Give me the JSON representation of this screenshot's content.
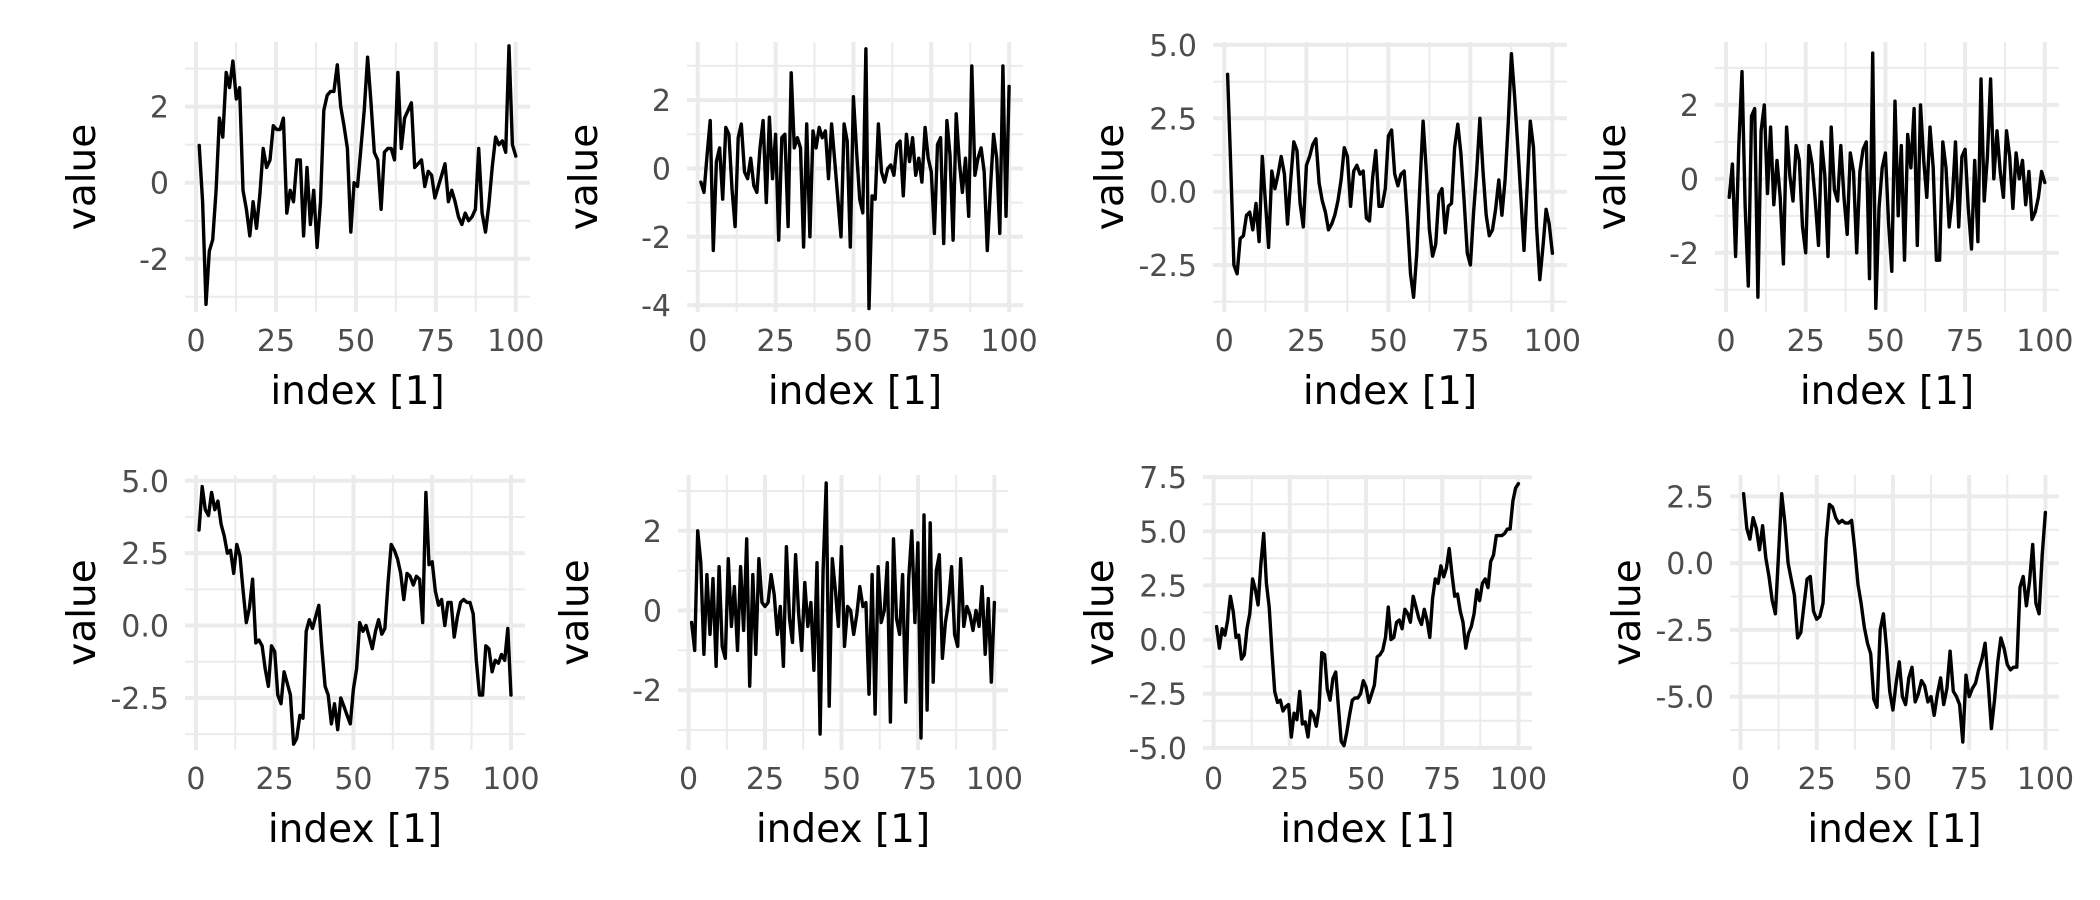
{
  "chart_data": [
    {
      "type": "line",
      "xlabel": "index [1]",
      "ylabel": "value",
      "xlim": [
        1,
        100
      ],
      "ylim": [
        -3.4,
        3.7
      ],
      "xticks": [
        0,
        25,
        50,
        75,
        100
      ],
      "xtick_labels": [
        "0",
        "25",
        "50",
        "75",
        "100"
      ],
      "yticks": [
        -2,
        0,
        2
      ],
      "ytick_labels": [
        "-2",
        "0",
        "2"
      ],
      "grid": true,
      "series": [
        {
          "color": "#000000",
          "values": [
            0.98,
            -0.5,
            -3.2,
            -1.8,
            -1.5,
            -0.2,
            1.7,
            1.2,
            2.9,
            2.5,
            3.2,
            2.2,
            2.5,
            -0.2,
            -0.7,
            -1.4,
            -0.5,
            -1.2,
            -0.3,
            0.9,
            0.4,
            0.6,
            1.5,
            1.4,
            1.4,
            1.7,
            -0.8,
            -0.2,
            -0.5,
            0.6,
            0.6,
            -1.4,
            0.4,
            -1.1,
            -0.2,
            -1.7,
            -0.5,
            1.9,
            2.3,
            2.4,
            2.4,
            3.1,
            2.0,
            1.5,
            0.9,
            -1.3,
            0.0,
            -0.1,
            0.9,
            1.9,
            3.3,
            2.1,
            0.8,
            0.6,
            -0.7,
            0.8,
            0.9,
            0.9,
            0.6,
            2.9,
            0.9,
            1.7,
            1.9,
            2.1,
            0.4,
            0.5,
            0.6,
            -0.1,
            0.3,
            0.2,
            -0.4,
            -0.1,
            0.2,
            0.5,
            -0.5,
            -0.2,
            -0.5,
            -0.9,
            -1.1,
            -0.8,
            -1.0,
            -0.9,
            -0.7,
            0.9,
            -0.8,
            -1.3,
            -0.6,
            0.4,
            1.2,
            1.0,
            1.1,
            0.8,
            3.6,
            1.0,
            0.7
          ]
        }
      ]
    },
    {
      "type": "line",
      "xlabel": "index [1]",
      "ylabel": "value",
      "xlim": [
        1,
        100
      ],
      "ylim": [
        -4.2,
        3.7
      ],
      "xticks": [
        0,
        25,
        50,
        75,
        100
      ],
      "xtick_labels": [
        "0",
        "25",
        "50",
        "75",
        "100"
      ],
      "yticks": [
        -4,
        -2,
        0,
        2
      ],
      "ytick_labels": [
        "-4",
        "-2",
        "0",
        "2"
      ],
      "grid": true,
      "series": [
        {
          "color": "#000000",
          "values": [
            -0.4,
            -0.7,
            0.4,
            1.4,
            -2.4,
            0.2,
            0.6,
            -0.9,
            1.2,
            1.0,
            -0.6,
            -1.7,
            0.9,
            1.3,
            -0.1,
            -0.3,
            0.3,
            -0.5,
            -0.7,
            0.6,
            1.4,
            -1.0,
            1.5,
            -0.3,
            1.0,
            -2.1,
            0.9,
            1.0,
            -1.7,
            2.8,
            0.6,
            0.9,
            0.6,
            -2.3,
            1.3,
            -2.0,
            1.1,
            0.6,
            1.2,
            0.9,
            1.1,
            -0.3,
            1.3,
            0.2,
            -0.9,
            -2.0,
            1.3,
            0.8,
            -2.3,
            2.1,
            0.5,
            -0.9,
            -1.3,
            3.5,
            -4.1,
            -0.8,
            -0.9,
            1.3,
            -0.1,
            -0.4,
            0.0,
            0.1,
            -0.2,
            0.7,
            0.8,
            -0.8,
            1.0,
            0.2,
            0.9,
            -0.2,
            0.3,
            -0.4,
            1.2,
            0.3,
            -0.1,
            -1.9,
            0.7,
            0.9,
            -2.2,
            1.4,
            0.4,
            -2.1,
            1.6,
            0.2,
            -0.7,
            0.3,
            -1.4,
            3.0,
            -0.2,
            0.3,
            0.6,
            -0.1,
            -2.4,
            -0.6,
            1.0,
            0.3,
            -1.9,
            3.0,
            -1.4,
            2.4
          ]
        }
      ]
    },
    {
      "type": "line",
      "xlabel": "index [1]",
      "ylabel": "value",
      "xlim": [
        1,
        100
      ],
      "ylim": [
        -4.1,
        5.1
      ],
      "xticks": [
        0,
        25,
        50,
        75,
        100
      ],
      "xtick_labels": [
        "0",
        "25",
        "50",
        "75",
        "100"
      ],
      "yticks": [
        -2.5,
        0.0,
        2.5,
        5.0
      ],
      "ytick_labels": [
        "-2.5",
        "0.0",
        "2.5",
        "5.0"
      ],
      "grid": true,
      "series": [
        {
          "color": "#000000",
          "values": [
            4.0,
            0.8,
            -2.5,
            -2.8,
            -1.6,
            -1.5,
            -0.8,
            -0.7,
            -1.3,
            -0.4,
            -1.7,
            1.2,
            -0.4,
            -1.9,
            0.7,
            0.1,
            0.6,
            1.2,
            0.6,
            -1.1,
            0.4,
            1.7,
            1.4,
            -0.4,
            -1.2,
            0.9,
            1.2,
            1.6,
            1.8,
            0.3,
            -0.3,
            -0.7,
            -1.3,
            -1.1,
            -0.8,
            -0.3,
            0.4,
            1.5,
            1.2,
            -0.5,
            0.7,
            0.9,
            0.6,
            0.7,
            -0.9,
            -1.0,
            0.5,
            1.4,
            -0.5,
            -0.5,
            0.1,
            1.9,
            2.1,
            0.6,
            0.2,
            0.6,
            0.7,
            -0.9,
            -2.8,
            -3.6,
            -2.1,
            0.3,
            2.4,
            0.7,
            -1.3,
            -2.2,
            -1.8,
            -0.1,
            0.1,
            -1.4,
            -0.5,
            -0.4,
            1.5,
            2.3,
            1.3,
            -0.3,
            -2.1,
            -2.5,
            -0.7,
            0.7,
            2.5,
            0.7,
            -0.8,
            -1.5,
            -1.3,
            -0.6,
            0.4,
            -0.8,
            0.4,
            2.3,
            4.7,
            3.3,
            1.6,
            -0.2,
            -2.0,
            0.2,
            2.4,
            1.5,
            -1.2,
            -3.0,
            -1.9,
            -0.6,
            -1.1,
            -2.1
          ]
        }
      ]
    },
    {
      "type": "line",
      "xlabel": "index [1]",
      "ylabel": "value",
      "xlim": [
        1,
        100
      ],
      "ylim": [
        -3.6,
        3.7
      ],
      "xticks": [
        0,
        25,
        50,
        75,
        100
      ],
      "xtick_labels": [
        "0",
        "25",
        "50",
        "75",
        "100"
      ],
      "yticks": [
        -2,
        0,
        2
      ],
      "ytick_labels": [
        "-2",
        "0",
        "2"
      ],
      "grid": true,
      "series": [
        {
          "color": "#000000",
          "values": [
            -0.5,
            0.4,
            -2.1,
            0.9,
            2.9,
            -0.7,
            -2.9,
            1.7,
            1.9,
            -3.2,
            1.3,
            2.0,
            -0.4,
            1.4,
            -0.7,
            0.5,
            -0.5,
            -2.3,
            1.4,
            0.1,
            -0.6,
            0.9,
            0.5,
            -1.3,
            -2.0,
            0.9,
            0.4,
            -0.6,
            -1.8,
            1.0,
            0.1,
            -2.1,
            1.4,
            -0.3,
            -0.6,
            0.9,
            -0.5,
            -1.5,
            0.7,
            0.2,
            -2.0,
            0.2,
            0.8,
            1.0,
            -2.7,
            3.4,
            -3.5,
            -0.8,
            0.3,
            0.7,
            -1.2,
            -2.5,
            2.1,
            -1.0,
            0.9,
            -2.2,
            1.2,
            0.3,
            1.9,
            -1.8,
            2.0,
            0.5,
            -0.5,
            1.4,
            0.3,
            -2.2,
            -2.2,
            1.0,
            0.3,
            -1.3,
            -0.5,
            1.0,
            -1.3,
            0.6,
            0.8,
            -0.8,
            -1.9,
            0.5,
            -1.7,
            2.7,
            -0.6,
            0.6,
            2.7,
            0.0,
            1.3,
            0.2,
            -0.5,
            1.3,
            0.6,
            -0.8,
            0.7,
            0.0,
            0.5,
            -0.7,
            0.2,
            -1.1,
            -0.9,
            -0.5,
            0.2,
            -0.1
          ]
        }
      ]
    },
    {
      "type": "line",
      "xlabel": "index [1]",
      "ylabel": "value",
      "xlim": [
        1,
        100
      ],
      "ylim": [
        -4.3,
        5.2
      ],
      "xticks": [
        0,
        25,
        50,
        75,
        100
      ],
      "xtick_labels": [
        "0",
        "25",
        "50",
        "75",
        "100"
      ],
      "yticks": [
        -2.5,
        0.0,
        2.5,
        5.0
      ],
      "ytick_labels": [
        "-2.5",
        "0.0",
        "2.5",
        "5.0"
      ],
      "grid": true,
      "series": [
        {
          "color": "#000000",
          "values": [
            3.3,
            4.8,
            4.0,
            3.8,
            4.6,
            4.0,
            4.3,
            3.5,
            3.1,
            2.5,
            2.6,
            1.8,
            2.8,
            2.4,
            1.2,
            0.1,
            0.6,
            1.6,
            -0.6,
            -0.5,
            -0.7,
            -1.5,
            -2.1,
            -0.7,
            -0.9,
            -2.4,
            -2.7,
            -1.6,
            -2.0,
            -2.4,
            -4.1,
            -3.9,
            -3.1,
            -3.2,
            -0.2,
            0.2,
            -0.1,
            0.3,
            0.7,
            -0.8,
            -2.1,
            -2.4,
            -3.4,
            -2.7,
            -3.6,
            -2.5,
            -2.8,
            -3.1,
            -3.4,
            -2.2,
            -1.5,
            0.1,
            -0.2,
            0.0,
            -0.4,
            -0.8,
            -0.2,
            0.2,
            -0.3,
            -0.1,
            1.5,
            2.8,
            2.6,
            2.3,
            1.8,
            0.9,
            1.8,
            1.7,
            1.4,
            1.7,
            1.6,
            0.1,
            4.6,
            2.1,
            2.2,
            1.2,
            0.7,
            0.9,
            0.0,
            0.8,
            0.8,
            -0.4,
            0.3,
            0.8,
            0.9,
            0.8,
            0.8,
            0.4,
            -1.2,
            -2.4,
            -2.4,
            -0.7,
            -0.8,
            -1.6,
            -1.2,
            -1.3,
            -1.0,
            -1.2,
            -0.1,
            -2.4
          ]
        }
      ]
    },
    {
      "type": "line",
      "xlabel": "index [1]",
      "ylabel": "value",
      "xlim": [
        1,
        100
      ],
      "ylim": [
        -3.5,
        3.4
      ],
      "xticks": [
        0,
        25,
        50,
        75,
        100
      ],
      "xtick_labels": [
        "0",
        "25",
        "50",
        "75",
        "100"
      ],
      "yticks": [
        -2,
        0,
        2
      ],
      "ytick_labels": [
        "-2",
        "0",
        "2"
      ],
      "grid": true,
      "series": [
        {
          "color": "#000000",
          "values": [
            -0.3,
            -1.0,
            2.0,
            1.2,
            -1.1,
            0.9,
            -0.6,
            0.8,
            -1.4,
            1.1,
            -0.9,
            -1.2,
            1.3,
            -0.4,
            0.6,
            -1.0,
            1.1,
            -0.5,
            1.8,
            -1.9,
            0.9,
            -1.1,
            1.3,
            0.2,
            0.1,
            0.2,
            0.9,
            0.4,
            -0.6,
            0.1,
            -1.4,
            1.6,
            -0.2,
            -0.8,
            1.4,
            -0.1,
            -1.0,
            0.7,
            -0.4,
            0.2,
            -1.5,
            1.2,
            -3.1,
            1.0,
            3.2,
            -2.4,
            1.3,
            0.5,
            -0.4,
            1.6,
            -0.9,
            0.1,
            0.0,
            -0.6,
            -0.1,
            0.6,
            0.1,
            0.2,
            -2.1,
            0.9,
            -2.6,
            1.1,
            -0.3,
            0.0,
            1.2,
            -2.8,
            1.8,
            -0.2,
            -0.6,
            0.9,
            -2.3,
            0.8,
            2.0,
            -0.3,
            1.7,
            -3.2,
            2.4,
            -2.5,
            2.2,
            -1.8,
            1.0,
            1.4,
            -1.2,
            -0.3,
            0.2,
            1.1,
            -0.6,
            -0.9,
            1.3,
            -0.4,
            0.1,
            -0.1,
            -0.5,
            0.0,
            -0.4,
            0.6,
            -1.1,
            0.3,
            -1.8,
            0.2
          ]
        }
      ]
    },
    {
      "type": "line",
      "xlabel": "index [1]",
      "ylabel": "value",
      "xlim": [
        1,
        100
      ],
      "ylim": [
        -5.1,
        7.6
      ],
      "xticks": [
        0,
        25,
        50,
        75,
        100
      ],
      "xtick_labels": [
        "0",
        "25",
        "50",
        "75",
        "100"
      ],
      "yticks": [
        -5.0,
        -2.5,
        0.0,
        2.5,
        5.0,
        7.5
      ],
      "ytick_labels": [
        "-5.0",
        "-2.5",
        "0.0",
        "2.5",
        "5.0",
        "7.5"
      ],
      "grid": true,
      "series": [
        {
          "color": "#000000",
          "values": [
            0.6,
            -0.4,
            0.5,
            0.2,
            0.9,
            2.0,
            1.3,
            0.1,
            0.2,
            -0.9,
            -0.7,
            0.5,
            1.2,
            2.8,
            2.3,
            1.6,
            3.5,
            4.9,
            2.6,
            1.5,
            -0.6,
            -2.4,
            -2.9,
            -2.8,
            -3.3,
            -3.1,
            -3.0,
            -4.5,
            -3.4,
            -3.7,
            -2.4,
            -3.9,
            -3.8,
            -4.5,
            -3.3,
            -3.5,
            -4.0,
            -3.2,
            -0.6,
            -0.7,
            -2.3,
            -2.8,
            -1.8,
            -1.5,
            -3.1,
            -4.7,
            -4.9,
            -4.3,
            -3.5,
            -2.8,
            -2.7,
            -2.7,
            -2.5,
            -1.9,
            -2.2,
            -2.9,
            -2.5,
            -2.1,
            -0.8,
            -0.7,
            -0.5,
            0.1,
            1.5,
            0.0,
            0.1,
            0.8,
            0.9,
            0.5,
            1.4,
            1.2,
            0.8,
            2.0,
            1.5,
            1.0,
            0.7,
            1.4,
            0.9,
            0.1,
            1.9,
            2.8,
            2.6,
            3.4,
            2.9,
            3.3,
            4.2,
            3.0,
            2.0,
            2.1,
            1.3,
            0.8,
            -0.4,
            0.3,
            0.6,
            1.2,
            2.3,
            1.8,
            2.6,
            2.8,
            2.4,
            3.6,
            3.9,
            4.8,
            4.8,
            4.8,
            4.9,
            5.1,
            5.1,
            6.4,
            7.0,
            7.2
          ]
        }
      ]
    },
    {
      "type": "line",
      "xlabel": "index [1]",
      "ylabel": "value",
      "xlim": [
        1,
        100
      ],
      "ylim": [
        -7.0,
        3.3
      ],
      "xticks": [
        0,
        25,
        50,
        75,
        100
      ],
      "xtick_labels": [
        "0",
        "25",
        "50",
        "75",
        "100"
      ],
      "yticks": [
        -5.0,
        -2.5,
        0.0,
        2.5
      ],
      "ytick_labels": [
        "-5.0",
        "-2.5",
        "0.0",
        "2.5"
      ],
      "grid": true,
      "series": [
        {
          "color": "#000000",
          "values": [
            2.6,
            1.3,
            0.9,
            1.7,
            1.3,
            0.5,
            1.4,
            0.2,
            -0.5,
            -1.4,
            -1.9,
            0.3,
            2.6,
            1.5,
            0.0,
            -0.6,
            -1.2,
            -2.8,
            -2.6,
            -1.6,
            -0.6,
            -0.5,
            -1.8,
            -2.1,
            -2.0,
            -1.5,
            0.9,
            2.2,
            2.1,
            1.7,
            1.5,
            1.6,
            1.5,
            1.5,
            1.6,
            0.5,
            -0.8,
            -1.5,
            -2.4,
            -3.0,
            -3.4,
            -5.1,
            -5.4,
            -2.5,
            -1.9,
            -3.2,
            -4.8,
            -5.5,
            -4.5,
            -3.7,
            -5.0,
            -5.3,
            -4.3,
            -3.9,
            -5.2,
            -4.9,
            -4.4,
            -4.6,
            -5.2,
            -5.0,
            -5.7,
            -4.9,
            -4.3,
            -5.3,
            -4.7,
            -3.3,
            -4.8,
            -5.0,
            -5.3,
            -6.7,
            -4.2,
            -5.0,
            -4.7,
            -4.5,
            -4.0,
            -3.6,
            -3.0,
            -4.5,
            -6.2,
            -5.1,
            -3.7,
            -2.8,
            -3.2,
            -3.8,
            -4.0,
            -3.9,
            -3.9,
            -0.9,
            -0.5,
            -1.6,
            -0.7,
            0.7,
            -1.5,
            -1.9,
            0.3,
            1.9
          ]
        }
      ]
    }
  ]
}
